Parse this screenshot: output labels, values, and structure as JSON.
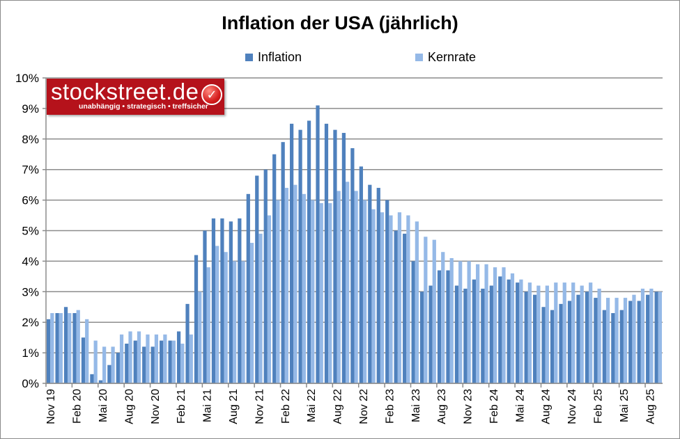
{
  "chart_data": {
    "type": "bar",
    "title": "Inflation der USA (jährlich)",
    "xlabel": "",
    "ylabel": "",
    "ylim": [
      0,
      10
    ],
    "y_ticks": [
      "0%",
      "1%",
      "2%",
      "3%",
      "4%",
      "5%",
      "6%",
      "7%",
      "8%",
      "9%",
      "10%"
    ],
    "grid": true,
    "legend_position": "top",
    "x_tick_labels": [
      "Nov 19",
      "Feb 20",
      "Mai 20",
      "Aug 20",
      "Nov 20",
      "Feb 21",
      "Mai 21",
      "Aug 21",
      "Nov 21",
      "Feb 22",
      "Mai 22",
      "Aug 22",
      "Nov 22",
      "Feb 23",
      "Mai 23",
      "Aug 23",
      "Nov 23",
      "Feb 24",
      "Mai 24",
      "Aug 24",
      "Nov 24",
      "Feb 25",
      "Mai 25",
      "Aug 25"
    ],
    "categories": [
      "Nov 19",
      "Dez 19",
      "Jan 20",
      "Feb 20",
      "Mär 20",
      "Apr 20",
      "Mai 20",
      "Jun 20",
      "Jul 20",
      "Aug 20",
      "Sep 20",
      "Okt 20",
      "Nov 20",
      "Dez 20",
      "Jan 21",
      "Feb 21",
      "Mär 21",
      "Apr 21",
      "Mai 21",
      "Jun 21",
      "Jul 21",
      "Aug 21",
      "Sep 21",
      "Okt 21",
      "Nov 21",
      "Dez 21",
      "Jan 22",
      "Feb 22",
      "Mär 22",
      "Apr 22",
      "Mai 22",
      "Jun 22",
      "Jul 22",
      "Aug 22",
      "Sep 22",
      "Okt 22",
      "Nov 22",
      "Dez 22",
      "Jan 23",
      "Feb 23",
      "Mär 23",
      "Apr 23",
      "Mai 23",
      "Jun 23",
      "Jul 23",
      "Aug 23",
      "Sep 23",
      "Okt 23",
      "Nov 23",
      "Dez 23",
      "Jan 24",
      "Feb 24",
      "Mär 24",
      "Apr 24",
      "Mai 24",
      "Jun 24",
      "Jul 24",
      "Aug 24",
      "Sep 24",
      "Okt 24",
      "Nov 24",
      "Dez 24",
      "Jan 25",
      "Feb 25",
      "Mär 25",
      "Apr 25",
      "Mai 25",
      "Jun 25",
      "Jul 25",
      "Aug 25",
      "Sep 25"
    ],
    "series": [
      {
        "name": "Inflation",
        "color": "#4f81bd",
        "values": [
          2.1,
          2.3,
          2.5,
          2.3,
          1.5,
          0.3,
          0.1,
          0.6,
          1.0,
          1.3,
          1.4,
          1.2,
          1.2,
          1.4,
          1.4,
          1.7,
          2.6,
          4.2,
          5.0,
          5.4,
          5.4,
          5.3,
          5.4,
          6.2,
          6.8,
          7.0,
          7.5,
          7.9,
          8.5,
          8.3,
          8.6,
          9.1,
          8.5,
          8.3,
          8.2,
          7.7,
          7.1,
          6.5,
          6.4,
          6.0,
          5.0,
          4.9,
          4.0,
          3.0,
          3.2,
          3.7,
          3.7,
          3.2,
          3.1,
          3.4,
          3.1,
          3.2,
          3.5,
          3.4,
          3.3,
          3.0,
          2.9,
          2.5,
          2.4,
          2.6,
          2.7,
          2.9,
          3.0,
          2.8,
          2.4,
          2.3,
          2.4,
          2.7,
          2.7,
          2.9,
          3.0
        ]
      },
      {
        "name": "Kernrate",
        "color": "#95b9e7",
        "values": [
          2.3,
          2.3,
          2.3,
          2.4,
          2.1,
          1.4,
          1.2,
          1.2,
          1.6,
          1.7,
          1.7,
          1.6,
          1.6,
          1.6,
          1.4,
          1.3,
          1.6,
          3.0,
          3.8,
          4.5,
          4.3,
          4.0,
          4.0,
          4.6,
          4.9,
          5.5,
          6.0,
          6.4,
          6.5,
          6.2,
          6.0,
          5.9,
          5.9,
          6.3,
          6.6,
          6.3,
          6.0,
          5.7,
          5.6,
          5.5,
          5.6,
          5.5,
          5.3,
          4.8,
          4.7,
          4.3,
          4.1,
          4.0,
          4.0,
          3.9,
          3.9,
          3.8,
          3.8,
          3.6,
          3.4,
          3.3,
          3.2,
          3.2,
          3.3,
          3.3,
          3.3,
          3.2,
          3.3,
          3.1,
          2.8,
          2.8,
          2.8,
          2.9,
          3.1,
          3.1,
          3.0
        ]
      }
    ]
  },
  "logo": {
    "name": "stockstreet.de",
    "tagline": "unabhängig • strategisch • treffsicher"
  }
}
